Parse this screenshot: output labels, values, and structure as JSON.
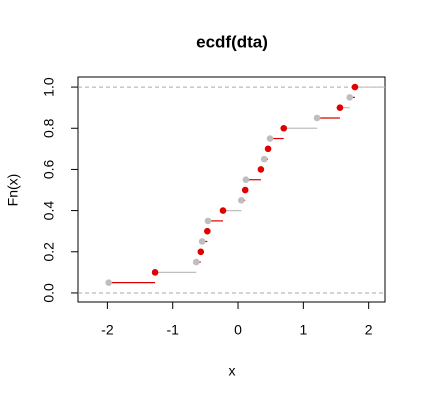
{
  "chart_data": {
    "type": "ecdf",
    "title": "ecdf(dta)",
    "x_label": "x",
    "y_label": "Fn(x)",
    "x": [
      -1.98,
      -1.27,
      -0.64,
      -0.57,
      -0.55,
      -0.47,
      -0.46,
      -0.23,
      0.05,
      0.11,
      0.12,
      0.35,
      0.4,
      0.46,
      0.49,
      0.7,
      1.21,
      1.56,
      1.71,
      1.79
    ],
    "values": [
      0.05,
      0.1,
      0.15,
      0.2,
      0.25,
      0.3,
      0.35,
      0.4,
      0.45,
      0.5,
      0.55,
      0.6,
      0.65,
      0.7,
      0.75,
      0.8,
      0.85,
      0.9,
      0.95,
      1.0
    ],
    "colors": [
      "#bebebe",
      "#e00000"
    ],
    "reference_lines": [
      0,
      1
    ],
    "xlim": [
      -2.45,
      2.25
    ],
    "ylim": [
      -0.044,
      1.049
    ],
    "xticks": [
      -2,
      -1,
      0,
      1,
      2
    ],
    "yticks": [
      {
        "value": 0,
        "label": "0.0"
      },
      0.2,
      0.4,
      0.6,
      0.8,
      {
        "value": 1,
        "label": "1.0"
      }
    ]
  }
}
